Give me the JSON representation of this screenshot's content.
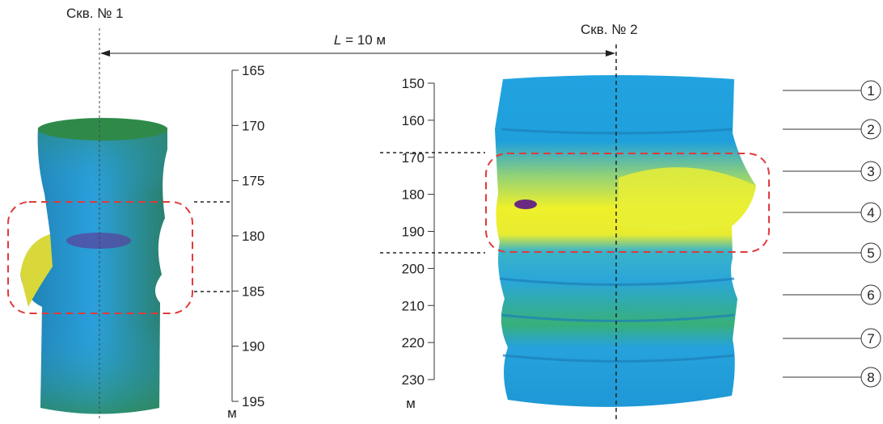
{
  "well1": {
    "label": "Скв. № 1",
    "scale": {
      "ticks": [
        165,
        170,
        175,
        180,
        185,
        190,
        195
      ],
      "unit": "м"
    }
  },
  "well2": {
    "label": "Скв. № 2",
    "scale": {
      "ticks": [
        150,
        160,
        170,
        180,
        190,
        200,
        210,
        220,
        230
      ],
      "unit": "м"
    },
    "markers": [
      "1",
      "2",
      "3",
      "4",
      "5",
      "6",
      "7",
      "8"
    ]
  },
  "distance": {
    "symbol": "L",
    "text": " = 10 м"
  }
}
